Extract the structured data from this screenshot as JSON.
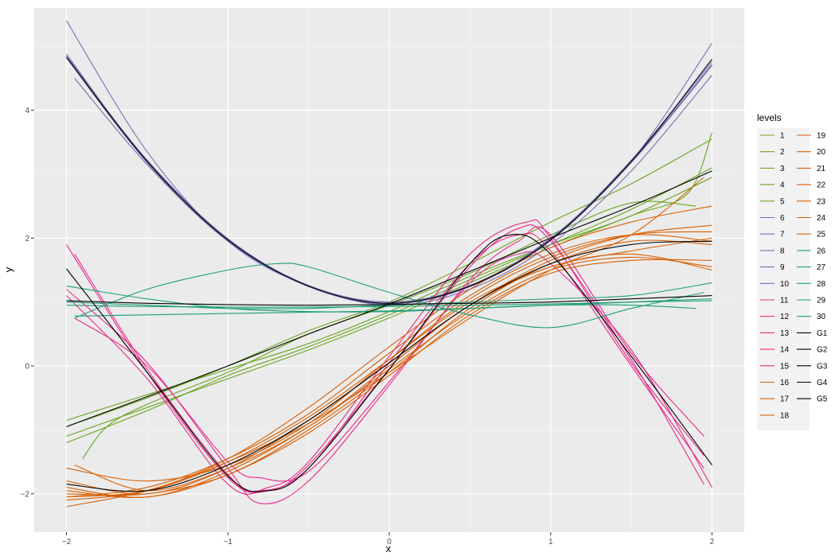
{
  "chart_data": {
    "type": "line",
    "xlabel": "x",
    "ylabel": "y",
    "xlim": [
      -2.2,
      2.2
    ],
    "ylim": [
      -2.6,
      5.6
    ],
    "x_ticks": [
      -2,
      -1,
      0,
      1,
      2
    ],
    "y_ticks": [
      -2,
      0,
      2,
      4
    ],
    "x_tick_labels": [
      "−2",
      "−1",
      "0",
      "1",
      "2"
    ],
    "y_tick_labels": [
      "−2",
      "0",
      "2",
      "4"
    ],
    "grid": true,
    "background": "#ebebeb",
    "legend": {
      "title": "levels",
      "placement": "right",
      "columns": 2,
      "entries": [
        "1",
        "2",
        "3",
        "4",
        "5",
        "6",
        "7",
        "8",
        "9",
        "10",
        "11",
        "12",
        "13",
        "14",
        "15",
        "16",
        "17",
        "18",
        "19",
        "20",
        "21",
        "22",
        "23",
        "24",
        "25",
        "26",
        "27",
        "28",
        "29",
        "30",
        "G1",
        "G2",
        "G3",
        "G4",
        "G5"
      ]
    },
    "series": [
      {
        "name": "1",
        "color": "#66a61e",
        "x": [
          -2,
          -1.5,
          -1,
          -0.5,
          0,
          0.5,
          1,
          1.5,
          2
        ],
        "y": [
          -0.85,
          -0.45,
          -0.05,
          0.35,
          0.85,
          1.4,
          1.9,
          2.35,
          2.95
        ]
      },
      {
        "name": "2",
        "color": "#66a61e",
        "x": [
          -1.9,
          -1.75,
          -1.5,
          -1,
          -0.5,
          0,
          0.5,
          1,
          1.5,
          1.9
        ],
        "y": [
          -1.45,
          -0.95,
          -0.6,
          -0.1,
          0.5,
          0.95,
          1.45,
          2.05,
          2.55,
          2.5
        ]
      },
      {
        "name": "3",
        "color": "#66a61e",
        "x": [
          -2,
          -1.5,
          -1,
          -0.5,
          0,
          0.5,
          1,
          1.5,
          1.85,
          2
        ],
        "y": [
          -1.1,
          -0.65,
          -0.2,
          0.25,
          0.75,
          1.3,
          1.85,
          2.35,
          2.7,
          3.65
        ]
      },
      {
        "name": "4",
        "color": "#66a61e",
        "x": [
          -2,
          -1.5,
          -1,
          -0.5,
          0,
          0.5,
          1,
          1.5,
          2
        ],
        "y": [
          -1.2,
          -0.7,
          -0.15,
          0.3,
          0.8,
          1.35,
          1.9,
          2.45,
          3.1
        ]
      },
      {
        "name": "5",
        "color": "#66a61e",
        "x": [
          -2,
          -1.5,
          -1,
          -0.5,
          0,
          0.5,
          1,
          1.5,
          2
        ],
        "y": [
          -0.95,
          -0.5,
          0,
          0.55,
          1.0,
          1.6,
          2.25,
          2.85,
          3.55
        ]
      },
      {
        "name": "6",
        "color": "#7570b3",
        "x": [
          -2,
          -1.5,
          -1,
          -0.5,
          0,
          0.5,
          1,
          1.5,
          2
        ],
        "y": [
          5.4,
          3.35,
          1.95,
          1.25,
          1.0,
          1.25,
          2.0,
          3.2,
          5.05
        ]
      },
      {
        "name": "7",
        "color": "#7570b3",
        "x": [
          -1.95,
          -1.5,
          -1,
          -0.5,
          0,
          0.5,
          1,
          1.5,
          2
        ],
        "y": [
          4.5,
          3.15,
          1.95,
          1.25,
          0.95,
          1.2,
          1.9,
          3.05,
          4.55
        ]
      },
      {
        "name": "8",
        "color": "#7570b3",
        "x": [
          -2,
          -1.5,
          -1,
          -0.5,
          0,
          0.5,
          1,
          1.5,
          2
        ],
        "y": [
          4.88,
          3.2,
          1.98,
          1.25,
          0.98,
          1.25,
          1.98,
          3.2,
          4.72
        ]
      },
      {
        "name": "9",
        "color": "#7570b3",
        "x": [
          -2,
          -1.5,
          -1,
          -0.5,
          0,
          0.5,
          1,
          1.5,
          2
        ],
        "y": [
          4.82,
          3.18,
          1.96,
          1.24,
          0.97,
          1.24,
          1.96,
          3.18,
          4.7
        ]
      },
      {
        "name": "10",
        "color": "#7570b3",
        "x": [
          -2,
          -1.5,
          -1,
          -0.5,
          0,
          0.5,
          1,
          1.5,
          2
        ],
        "y": [
          4.85,
          3.22,
          1.99,
          1.26,
          1.0,
          1.26,
          1.99,
          3.22,
          4.76
        ]
      },
      {
        "name": "11",
        "color": "#e7298a",
        "x": [
          -2,
          -1.5,
          -1,
          -0.75,
          -0.5,
          0,
          0.5,
          0.8,
          1,
          1.5,
          1.95
        ],
        "y": [
          1.9,
          -0.1,
          -1.75,
          -1.95,
          -1.55,
          -0.05,
          1.55,
          2.15,
          1.95,
          0.1,
          -1.85
        ]
      },
      {
        "name": "12",
        "color": "#e7298a",
        "x": [
          -2,
          -1.5,
          -1,
          -0.8,
          -0.5,
          0,
          0.5,
          0.8,
          1,
          1.5,
          1.95
        ],
        "y": [
          1.2,
          0.05,
          -1.6,
          -2.15,
          -1.8,
          -0.3,
          1.35,
          1.95,
          2.05,
          0.2,
          -1.1
        ]
      },
      {
        "name": "13",
        "color": "#e7298a",
        "x": [
          -1.95,
          -1.5,
          -1,
          -0.8,
          -0.5,
          0,
          0.5,
          0.8,
          1,
          1.5,
          1.95
        ],
        "y": [
          1.75,
          -0.05,
          -1.7,
          -1.95,
          -1.6,
          0.05,
          1.6,
          2.05,
          1.8,
          0.0,
          -1.6
        ]
      },
      {
        "name": "14",
        "color": "#e7298a",
        "x": [
          -2,
          -1.5,
          -1,
          -0.75,
          -0.5,
          0,
          0.5,
          0.85,
          1,
          1.5,
          1.95
        ],
        "y": [
          1.1,
          -0.2,
          -1.85,
          -1.9,
          -1.5,
          0.15,
          1.75,
          2.25,
          2.0,
          0.05,
          -1.4
        ]
      },
      {
        "name": "15",
        "color": "#e7298a",
        "x": [
          -1.95,
          -1.5,
          -1,
          -0.8,
          -0.5,
          0,
          0.5,
          0.8,
          1,
          1.5,
          2
        ],
        "y": [
          0.75,
          0.0,
          -1.5,
          -1.75,
          -1.65,
          -0.25,
          1.3,
          1.75,
          1.6,
          0.25,
          -1.9
        ]
      },
      {
        "name": "16",
        "color": "#d95f02",
        "x": [
          -2,
          -1.5,
          -1,
          -0.5,
          0,
          0.5,
          1,
          1.5,
          2
        ],
        "y": [
          -1.6,
          -1.8,
          -1.55,
          -0.9,
          0.1,
          1.05,
          1.7,
          2.05,
          2.1
        ]
      },
      {
        "name": "17",
        "color": "#d95f02",
        "x": [
          -2,
          -1.5,
          -1,
          -0.5,
          0,
          0.5,
          1,
          1.5,
          2
        ],
        "y": [
          -2.0,
          -2.0,
          -1.7,
          -1.0,
          -0.1,
          0.9,
          1.6,
          1.95,
          1.9
        ]
      },
      {
        "name": "18",
        "color": "#d95f02",
        "x": [
          -1.95,
          -1.5,
          -1,
          -0.5,
          0,
          0.5,
          1,
          1.5,
          2
        ],
        "y": [
          -1.55,
          -1.95,
          -1.6,
          -0.95,
          0.0,
          0.95,
          1.55,
          1.75,
          1.5
        ]
      },
      {
        "name": "19",
        "color": "#d95f02",
        "x": [
          -2,
          -1.5,
          -1,
          -0.5,
          0,
          0.5,
          1,
          1.5,
          2
        ],
        "y": [
          -2.1,
          -1.95,
          -1.45,
          -0.65,
          0.3,
          1.2,
          1.85,
          2.25,
          2.5
        ]
      },
      {
        "name": "20",
        "color": "#d95f02",
        "x": [
          -2,
          -1.5,
          -1,
          -0.5,
          0,
          0.5,
          1,
          1.5,
          2
        ],
        "y": [
          -2.05,
          -1.95,
          -1.5,
          -0.8,
          0.1,
          1.0,
          1.55,
          1.8,
          2.0
        ]
      },
      {
        "name": "21",
        "color": "#d95f02",
        "x": [
          -2,
          -1.5,
          -1,
          -0.5,
          0,
          0.5,
          1,
          1.5,
          2
        ],
        "y": [
          -1.8,
          -2.0,
          -1.6,
          -0.85,
          0.05,
          0.95,
          1.65,
          2.05,
          2.2
        ]
      },
      {
        "name": "22",
        "color": "#d95f02",
        "x": [
          -2,
          -1.5,
          -1,
          -0.5,
          0,
          0.5,
          1,
          1.5,
          1.95
        ],
        "y": [
          -2.2,
          -1.95,
          -1.5,
          -0.9,
          -0.1,
          0.75,
          1.5,
          2.05,
          2.95
        ]
      },
      {
        "name": "23",
        "color": "#d95f02",
        "x": [
          -2,
          -1.5,
          -1,
          -0.5,
          0,
          0.5,
          1,
          1.5,
          2
        ],
        "y": [
          -1.9,
          -2.05,
          -1.65,
          -0.95,
          -0.05,
          0.85,
          1.5,
          1.7,
          1.55
        ]
      },
      {
        "name": "24",
        "color": "#d95f02",
        "x": [
          -2,
          -1.5,
          -1,
          -0.5,
          0,
          0.5,
          1,
          1.5,
          2
        ],
        "y": [
          -2.05,
          -1.9,
          -1.45,
          -0.75,
          0.2,
          1.1,
          1.75,
          2.05,
          1.95
        ]
      },
      {
        "name": "25",
        "color": "#d95f02",
        "x": [
          -2,
          -1.5,
          -1,
          -0.5,
          0,
          0.5,
          1,
          1.5,
          2
        ],
        "y": [
          -1.95,
          -2.05,
          -1.7,
          -1.05,
          -0.15,
          0.8,
          1.45,
          1.65,
          1.65
        ]
      },
      {
        "name": "26",
        "color": "#1b9e77",
        "x": [
          -2,
          -1.5,
          -1,
          -0.5,
          0,
          0.5,
          1,
          1.5,
          2
        ],
        "y": [
          1.0,
          0.95,
          0.9,
          0.9,
          0.95,
          1.0,
          1.05,
          1.1,
          1.3
        ]
      },
      {
        "name": "27",
        "color": "#1b9e77",
        "x": [
          -1.95,
          -1.5,
          -1,
          -0.7,
          -0.5,
          0,
          0.5,
          1,
          1.5,
          1.95
        ],
        "y": [
          0.75,
          1.2,
          1.5,
          1.6,
          1.55,
          1.15,
          0.8,
          0.6,
          0.9,
          1.15
        ]
      },
      {
        "name": "28",
        "color": "#1b9e77",
        "x": [
          -2,
          -1.5,
          -1,
          -0.5,
          0,
          0.5,
          1,
          1.5,
          1.9
        ],
        "y": [
          1.25,
          1.05,
          0.9,
          0.85,
          0.85,
          0.9,
          0.95,
          0.95,
          0.9
        ]
      },
      {
        "name": "29",
        "color": "#1b9e77",
        "x": [
          -1.95,
          -1.5,
          -1,
          -0.5,
          0,
          0.5,
          1,
          1.5,
          2
        ],
        "y": [
          0.78,
          0.8,
          0.82,
          0.84,
          0.86,
          0.9,
          0.95,
          1.0,
          1.05
        ]
      },
      {
        "name": "30",
        "color": "#1b9e77",
        "x": [
          -2,
          -1.5,
          -1,
          -0.5,
          0,
          0.5,
          1,
          1.5,
          2
        ],
        "y": [
          0.95,
          0.93,
          0.92,
          0.92,
          0.93,
          0.95,
          0.97,
          1.0,
          1.02
        ]
      },
      {
        "name": "G1",
        "color": "#000000",
        "x": [
          -2,
          -1.5,
          -1,
          -0.5,
          0,
          0.5,
          1,
          1.5,
          2
        ],
        "y": [
          -0.95,
          -0.48,
          0.0,
          0.5,
          0.97,
          1.48,
          2.0,
          2.5,
          3.05
        ]
      },
      {
        "name": "G2",
        "color": "#000000",
        "x": [
          -2,
          -1.5,
          -1,
          -0.5,
          0,
          0.5,
          1,
          1.5,
          2
        ],
        "y": [
          4.83,
          3.2,
          1.97,
          1.25,
          0.98,
          1.25,
          1.97,
          3.2,
          4.8
        ]
      },
      {
        "name": "G3",
        "color": "#000000",
        "x": [
          -2,
          -1.5,
          -1,
          -0.75,
          -0.5,
          0,
          0.5,
          0.75,
          1,
          1.5,
          2
        ],
        "y": [
          1.52,
          -0.1,
          -1.72,
          -1.95,
          -1.6,
          -0.05,
          1.6,
          2.05,
          1.75,
          0.15,
          -1.55
        ]
      },
      {
        "name": "G4",
        "color": "#000000",
        "x": [
          -2,
          -1.5,
          -1,
          -0.5,
          0,
          0.5,
          1,
          1.5,
          2
        ],
        "y": [
          -1.85,
          -1.95,
          -1.55,
          -0.85,
          0.05,
          0.95,
          1.6,
          1.9,
          1.95
        ]
      },
      {
        "name": "G5",
        "color": "#000000",
        "x": [
          -2,
          -1.5,
          -1,
          -0.5,
          0,
          0.5,
          1,
          1.5,
          2
        ],
        "y": [
          1.02,
          0.98,
          0.96,
          0.95,
          0.96,
          0.98,
          1.0,
          1.05,
          1.1
        ]
      }
    ]
  }
}
